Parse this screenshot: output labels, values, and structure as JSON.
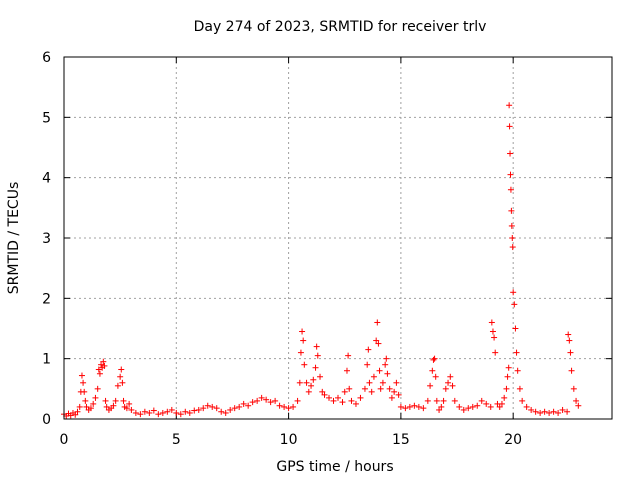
{
  "chart_data": {
    "type": "scatter",
    "title": "Day 274 of 2023, SRMTID for receiver trlv",
    "xlabel": "GPS time / hours",
    "ylabel": "SRMTID / TECUs",
    "xlim": [
      0,
      24.4
    ],
    "ylim": [
      0,
      6
    ],
    "grid": true,
    "marker": "+",
    "color": "#ff0000",
    "x_ticks": [
      0,
      5,
      10,
      15,
      20
    ],
    "y_ticks": [
      0,
      1,
      2,
      3,
      4,
      5,
      6
    ],
    "series": [
      {
        "name": "SRMTID",
        "points": [
          [
            0.0,
            0.08
          ],
          [
            0.1,
            0.05
          ],
          [
            0.2,
            0.09
          ],
          [
            0.3,
            0.06
          ],
          [
            0.4,
            0.1
          ],
          [
            0.5,
            0.07
          ],
          [
            0.6,
            0.12
          ],
          [
            0.7,
            0.2
          ],
          [
            0.75,
            0.45
          ],
          [
            0.8,
            0.72
          ],
          [
            0.85,
            0.6
          ],
          [
            0.9,
            0.45
          ],
          [
            0.95,
            0.3
          ],
          [
            1.0,
            0.2
          ],
          [
            1.1,
            0.15
          ],
          [
            1.2,
            0.18
          ],
          [
            1.3,
            0.25
          ],
          [
            1.4,
            0.35
          ],
          [
            1.5,
            0.5
          ],
          [
            1.55,
            0.82
          ],
          [
            1.6,
            0.75
          ],
          [
            1.65,
            0.9
          ],
          [
            1.7,
            0.85
          ],
          [
            1.75,
            0.95
          ],
          [
            1.8,
            0.88
          ],
          [
            1.85,
            0.3
          ],
          [
            1.9,
            0.2
          ],
          [
            2.0,
            0.15
          ],
          [
            2.1,
            0.18
          ],
          [
            2.2,
            0.22
          ],
          [
            2.3,
            0.3
          ],
          [
            2.4,
            0.55
          ],
          [
            2.5,
            0.7
          ],
          [
            2.55,
            0.82
          ],
          [
            2.6,
            0.6
          ],
          [
            2.65,
            0.3
          ],
          [
            2.7,
            0.2
          ],
          [
            2.8,
            0.18
          ],
          [
            2.9,
            0.25
          ],
          [
            3.0,
            0.15
          ],
          [
            3.2,
            0.1
          ],
          [
            3.4,
            0.08
          ],
          [
            3.6,
            0.12
          ],
          [
            3.8,
            0.1
          ],
          [
            4.0,
            0.14
          ],
          [
            4.2,
            0.08
          ],
          [
            4.4,
            0.1
          ],
          [
            4.6,
            0.12
          ],
          [
            4.8,
            0.15
          ],
          [
            5.0,
            0.1
          ],
          [
            5.2,
            0.08
          ],
          [
            5.4,
            0.12
          ],
          [
            5.6,
            0.1
          ],
          [
            5.8,
            0.14
          ],
          [
            6.0,
            0.15
          ],
          [
            6.2,
            0.18
          ],
          [
            6.4,
            0.22
          ],
          [
            6.6,
            0.2
          ],
          [
            6.8,
            0.18
          ],
          [
            7.0,
            0.12
          ],
          [
            7.2,
            0.1
          ],
          [
            7.4,
            0.15
          ],
          [
            7.6,
            0.18
          ],
          [
            7.8,
            0.2
          ],
          [
            8.0,
            0.25
          ],
          [
            8.2,
            0.22
          ],
          [
            8.4,
            0.28
          ],
          [
            8.6,
            0.3
          ],
          [
            8.8,
            0.35
          ],
          [
            9.0,
            0.32
          ],
          [
            9.2,
            0.28
          ],
          [
            9.4,
            0.3
          ],
          [
            9.6,
            0.22
          ],
          [
            9.8,
            0.2
          ],
          [
            10.0,
            0.18
          ],
          [
            10.2,
            0.2
          ],
          [
            10.4,
            0.3
          ],
          [
            10.5,
            0.6
          ],
          [
            10.55,
            1.1
          ],
          [
            10.6,
            1.45
          ],
          [
            10.65,
            1.3
          ],
          [
            10.7,
            0.9
          ],
          [
            10.8,
            0.6
          ],
          [
            10.9,
            0.45
          ],
          [
            11.0,
            0.55
          ],
          [
            11.1,
            0.65
          ],
          [
            11.2,
            0.85
          ],
          [
            11.25,
            1.2
          ],
          [
            11.3,
            1.05
          ],
          [
            11.4,
            0.7
          ],
          [
            11.5,
            0.45
          ],
          [
            11.6,
            0.4
          ],
          [
            11.8,
            0.35
          ],
          [
            12.0,
            0.3
          ],
          [
            12.2,
            0.35
          ],
          [
            12.4,
            0.28
          ],
          [
            12.5,
            0.45
          ],
          [
            12.6,
            0.8
          ],
          [
            12.65,
            1.05
          ],
          [
            12.7,
            0.5
          ],
          [
            12.8,
            0.3
          ],
          [
            13.0,
            0.25
          ],
          [
            13.2,
            0.35
          ],
          [
            13.4,
            0.5
          ],
          [
            13.5,
            0.9
          ],
          [
            13.55,
            1.15
          ],
          [
            13.6,
            0.6
          ],
          [
            13.7,
            0.45
          ],
          [
            13.8,
            0.7
          ],
          [
            13.9,
            1.3
          ],
          [
            13.95,
            1.6
          ],
          [
            14.0,
            1.25
          ],
          [
            14.05,
            0.8
          ],
          [
            14.1,
            0.5
          ],
          [
            14.2,
            0.6
          ],
          [
            14.3,
            0.9
          ],
          [
            14.35,
            1.0
          ],
          [
            14.4,
            0.75
          ],
          [
            14.5,
            0.5
          ],
          [
            14.6,
            0.35
          ],
          [
            14.7,
            0.45
          ],
          [
            14.8,
            0.6
          ],
          [
            14.9,
            0.4
          ],
          [
            15.0,
            0.2
          ],
          [
            15.2,
            0.18
          ],
          [
            15.4,
            0.2
          ],
          [
            15.6,
            0.22
          ],
          [
            15.8,
            0.2
          ],
          [
            16.0,
            0.18
          ],
          [
            16.2,
            0.3
          ],
          [
            16.3,
            0.55
          ],
          [
            16.4,
            0.8
          ],
          [
            16.45,
            0.98
          ],
          [
            16.5,
            1.0
          ],
          [
            16.55,
            0.7
          ],
          [
            16.6,
            0.3
          ],
          [
            16.7,
            0.15
          ],
          [
            16.8,
            0.2
          ],
          [
            16.9,
            0.3
          ],
          [
            17.0,
            0.5
          ],
          [
            17.1,
            0.6
          ],
          [
            17.2,
            0.7
          ],
          [
            17.3,
            0.55
          ],
          [
            17.4,
            0.3
          ],
          [
            17.6,
            0.2
          ],
          [
            17.8,
            0.15
          ],
          [
            18.0,
            0.18
          ],
          [
            18.2,
            0.2
          ],
          [
            18.4,
            0.22
          ],
          [
            18.6,
            0.3
          ],
          [
            18.8,
            0.25
          ],
          [
            19.0,
            0.2
          ],
          [
            19.05,
            1.6
          ],
          [
            19.1,
            1.45
          ],
          [
            19.15,
            1.35
          ],
          [
            19.2,
            1.1
          ],
          [
            19.3,
            0.25
          ],
          [
            19.4,
            0.2
          ],
          [
            19.5,
            0.25
          ],
          [
            19.6,
            0.35
          ],
          [
            19.7,
            0.5
          ],
          [
            19.75,
            0.7
          ],
          [
            19.8,
            0.85
          ],
          [
            19.82,
            5.2
          ],
          [
            19.84,
            4.85
          ],
          [
            19.86,
            4.4
          ],
          [
            19.88,
            4.05
          ],
          [
            19.9,
            3.8
          ],
          [
            19.92,
            3.45
          ],
          [
            19.94,
            3.2
          ],
          [
            19.96,
            3.0
          ],
          [
            19.98,
            2.85
          ],
          [
            20.0,
            2.1
          ],
          [
            20.05,
            1.9
          ],
          [
            20.1,
            1.5
          ],
          [
            20.15,
            1.1
          ],
          [
            20.2,
            0.8
          ],
          [
            20.3,
            0.5
          ],
          [
            20.4,
            0.3
          ],
          [
            20.6,
            0.2
          ],
          [
            20.8,
            0.15
          ],
          [
            21.0,
            0.12
          ],
          [
            21.2,
            0.1
          ],
          [
            21.4,
            0.12
          ],
          [
            21.6,
            0.1
          ],
          [
            21.8,
            0.12
          ],
          [
            22.0,
            0.1
          ],
          [
            22.2,
            0.15
          ],
          [
            22.4,
            0.12
          ],
          [
            22.45,
            1.4
          ],
          [
            22.5,
            1.3
          ],
          [
            22.55,
            1.1
          ],
          [
            22.6,
            0.8
          ],
          [
            22.7,
            0.5
          ],
          [
            22.8,
            0.3
          ],
          [
            22.9,
            0.22
          ]
        ]
      }
    ]
  }
}
